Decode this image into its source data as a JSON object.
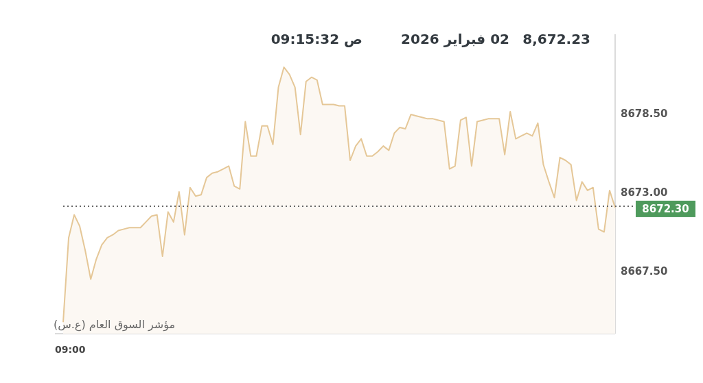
{
  "chart_data": {
    "type": "area",
    "title": "8,672.23",
    "subtitle": "02 فبراير 2026",
    "annotations": [
      "09:15:32 ص",
      "مؤشر السوق العام (ع.س)",
      "09:00"
    ],
    "categories": [
      null,
      null,
      null,
      null,
      null,
      null,
      null,
      null,
      null,
      null,
      null,
      null,
      null,
      null,
      null,
      null,
      null,
      null,
      null,
      null,
      null,
      null,
      null,
      null,
      null,
      null,
      null,
      null,
      null,
      null,
      null,
      null,
      null,
      null,
      null,
      null,
      null,
      null,
      null,
      null,
      null,
      null,
      null,
      null,
      null,
      null,
      null,
      null,
      null,
      null,
      null,
      null,
      null,
      null,
      null,
      null,
      null,
      null,
      null,
      null,
      null,
      null,
      null,
      null,
      null,
      null,
      null,
      null,
      null,
      null,
      null,
      null,
      null,
      null,
      null,
      null,
      null,
      null,
      null,
      null,
      null,
      null,
      null,
      null,
      null,
      null,
      null,
      null,
      null,
      null,
      null,
      null,
      null,
      null,
      null,
      null,
      null,
      null,
      null,
      null,
      null
    ],
    "series": [
      {
        "color": "#e5c797",
        "values": [
          8664.2,
          8670.1,
          8671.7,
          8670.9,
          8669.2,
          8667.2,
          8668.6,
          8669.6,
          8670.1,
          8670.3,
          8670.6,
          8670.7,
          8670.8,
          8670.8,
          8670.8,
          8671.2,
          8671.6,
          8671.7,
          8668.8,
          8671.9,
          8671.2,
          8673.3,
          8670.3,
          8673.6,
          8673.0,
          8673.1,
          8674.3,
          8674.6,
          8674.7,
          8674.9,
          8675.1,
          8673.7,
          8673.5,
          8678.2,
          8675.8,
          8675.8,
          8677.9,
          8677.9,
          8676.6,
          8680.6,
          8682.0,
          8681.5,
          8680.6,
          8677.3,
          8681.0,
          8681.3,
          8681.1,
          8679.4,
          8679.4,
          8679.4,
          8679.3,
          8679.3,
          8675.5,
          8676.5,
          8677.0,
          8675.8,
          8675.8,
          8676.1,
          8676.5,
          8676.2,
          8677.4,
          8677.8,
          8677.7,
          8678.7,
          8678.6,
          8678.5,
          8678.4,
          8678.4,
          8678.3,
          8678.2,
          8674.9,
          8675.1,
          8678.3,
          8678.5,
          8675.1,
          8678.2,
          8678.3,
          8678.4,
          8678.4,
          8678.4,
          8675.9,
          8678.9,
          8677.0,
          8677.2,
          8677.4,
          8677.2,
          8678.1,
          8675.2,
          8674.0,
          8672.9,
          8675.7,
          8675.5,
          8675.2,
          8672.7,
          8674.0,
          8673.4,
          8673.6,
          8670.7,
          8670.5,
          8673.4,
          8672.2
        ]
      }
    ],
    "ylim": [
      8663.4,
      8684.3
    ],
    "yticks": [
      {
        "value": 8667.5,
        "label": "8667.50"
      },
      {
        "value": 8673.0,
        "label": "8673.00"
      },
      {
        "value": 8678.5,
        "label": "8678.50"
      }
    ],
    "ref_lines": [
      {
        "axis": "y",
        "value": 8672.3,
        "label": "8672.30",
        "line_style": "dotted"
      }
    ],
    "marker": "none"
  }
}
